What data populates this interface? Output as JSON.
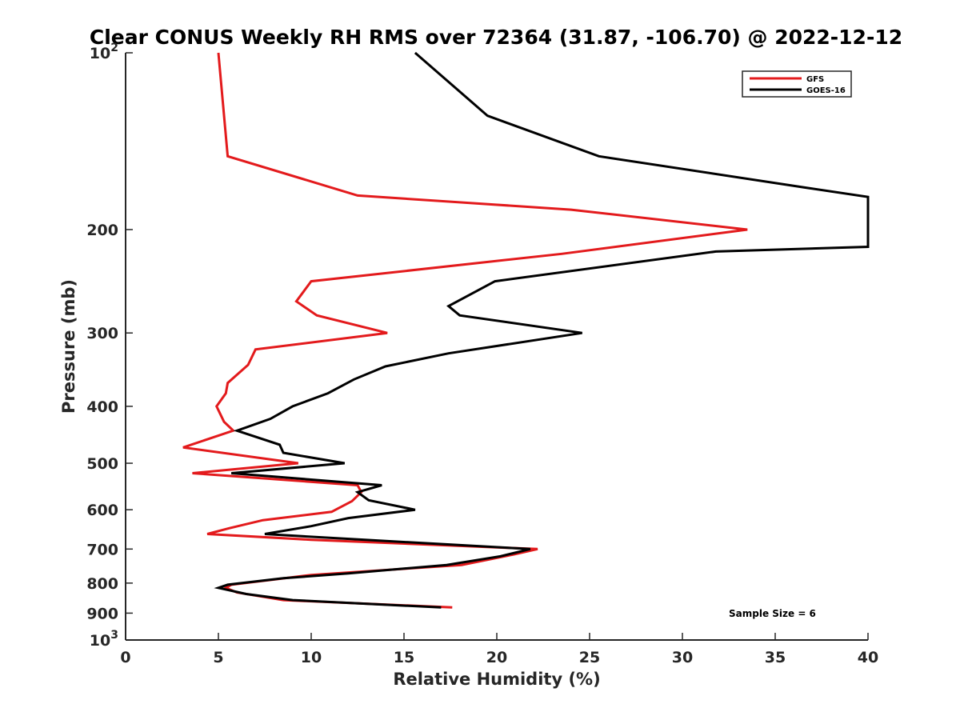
{
  "chart_data": {
    "type": "line",
    "title": "Clear CONUS Weekly RH RMS over 72364 (31.87, -106.70) @ 2022-12-12",
    "xlabel": "Relative Humidity (%)",
    "ylabel": "Pressure (mb)",
    "xlim": [
      0,
      40
    ],
    "ylim": [
      100,
      1000
    ],
    "y_scale": "log",
    "y_reversed": true,
    "x_ticks": [
      0,
      5,
      10,
      15,
      20,
      25,
      30,
      35,
      40
    ],
    "y_ticks": [
      {
        "value": 100,
        "base": "10",
        "exp": "2"
      },
      {
        "value": 200,
        "label": "200"
      },
      {
        "value": 300,
        "label": "300"
      },
      {
        "value": 400,
        "label": "400"
      },
      {
        "value": 500,
        "label": "500"
      },
      {
        "value": 600,
        "label": "600"
      },
      {
        "value": 700,
        "label": "700"
      },
      {
        "value": 800,
        "label": "800"
      },
      {
        "value": 900,
        "label": "900"
      },
      {
        "value": 1000,
        "base": "10",
        "exp": "3"
      }
    ],
    "grid": false,
    "legend_position": "top-right",
    "annotation": "Sample Size = 6",
    "series": [
      {
        "name": "GFS",
        "color": "#e31a1c",
        "points": [
          [
            5.0,
            100
          ],
          [
            5.5,
            150
          ],
          [
            12.5,
            175
          ],
          [
            24.0,
            185
          ],
          [
            33.5,
            200
          ],
          [
            23.5,
            220
          ],
          [
            10.0,
            245
          ],
          [
            9.2,
            265
          ],
          [
            10.3,
            280
          ],
          [
            14.1,
            300
          ],
          [
            7.0,
            320
          ],
          [
            6.6,
            340
          ],
          [
            5.5,
            365
          ],
          [
            5.4,
            380
          ],
          [
            4.9,
            400
          ],
          [
            5.3,
            425
          ],
          [
            5.8,
            440
          ],
          [
            3.1,
            470
          ],
          [
            9.3,
            500
          ],
          [
            3.6,
            520
          ],
          [
            12.5,
            545
          ],
          [
            12.7,
            560
          ],
          [
            12.2,
            580
          ],
          [
            11.1,
            605
          ],
          [
            7.4,
            625
          ],
          [
            5.6,
            645
          ],
          [
            4.4,
            660
          ],
          [
            10.0,
            675
          ],
          [
            22.2,
            700
          ],
          [
            20.9,
            715
          ],
          [
            18.1,
            745
          ],
          [
            10.0,
            775
          ],
          [
            5.7,
            805
          ],
          [
            5.4,
            815
          ],
          [
            6.0,
            830
          ],
          [
            8.5,
            855
          ],
          [
            17.6,
            880
          ]
        ]
      },
      {
        "name": "GOES-16",
        "color": "#000000",
        "points": [
          [
            15.6,
            100
          ],
          [
            19.5,
            128
          ],
          [
            25.5,
            150
          ],
          [
            36.8,
            170
          ],
          [
            40.0,
            176
          ],
          [
            40.0,
            214
          ],
          [
            31.8,
            218
          ],
          [
            19.9,
            245
          ],
          [
            17.4,
            270
          ],
          [
            18.0,
            280
          ],
          [
            24.6,
            300
          ],
          [
            17.4,
            325
          ],
          [
            14.0,
            342
          ],
          [
            12.3,
            360
          ],
          [
            10.9,
            380
          ],
          [
            9.0,
            400
          ],
          [
            7.8,
            420
          ],
          [
            6.0,
            440
          ],
          [
            8.3,
            465
          ],
          [
            8.5,
            480
          ],
          [
            11.8,
            500
          ],
          [
            5.7,
            520
          ],
          [
            13.8,
            545
          ],
          [
            12.5,
            560
          ],
          [
            13.1,
            578
          ],
          [
            15.6,
            600
          ],
          [
            12.0,
            620
          ],
          [
            10.0,
            640
          ],
          [
            7.5,
            660
          ],
          [
            11.0,
            670
          ],
          [
            21.8,
            700
          ],
          [
            20.2,
            720
          ],
          [
            17.3,
            745
          ],
          [
            12.0,
            770
          ],
          [
            8.5,
            785
          ],
          [
            5.5,
            805
          ],
          [
            5.0,
            815
          ],
          [
            6.5,
            835
          ],
          [
            9.0,
            855
          ],
          [
            17.0,
            880
          ]
        ]
      }
    ]
  }
}
